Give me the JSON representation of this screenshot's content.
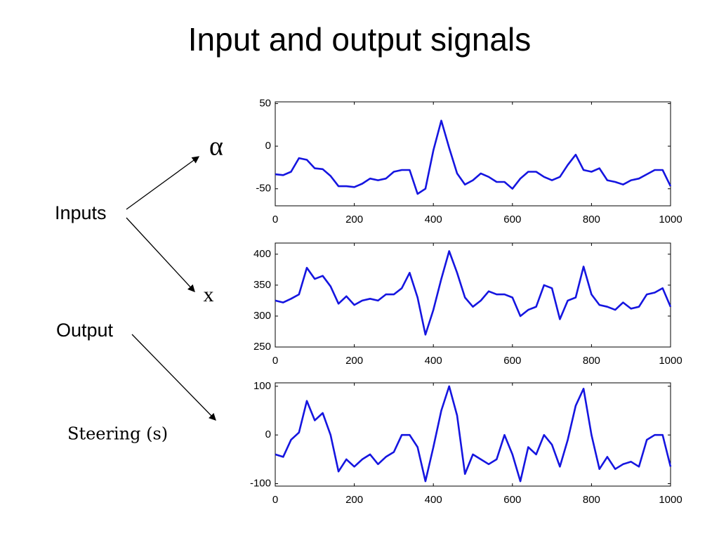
{
  "slide": {
    "title": "Input and output signals",
    "alpha_label": "α",
    "inputs_label": "Inputs",
    "x_label": "x",
    "output_label": "Output",
    "steering_label": "Steering (s)"
  },
  "chart_data": [
    {
      "type": "line",
      "x": [
        0,
        20,
        40,
        60,
        80,
        100,
        120,
        140,
        160,
        180,
        200,
        220,
        240,
        260,
        280,
        300,
        320,
        340,
        360,
        380,
        400,
        420,
        440,
        460,
        480,
        500,
        520,
        540,
        560,
        580,
        600,
        620,
        640,
        660,
        680,
        700,
        720,
        740,
        760,
        780,
        800,
        820,
        840,
        860,
        880,
        900,
        920,
        940,
        960,
        980,
        1000
      ],
      "series": [
        {
          "color": "#1515e0",
          "values": [
            -33,
            -34,
            -30,
            -14,
            -16,
            -26,
            -27,
            -35,
            -47,
            -47,
            -48,
            -44,
            -38,
            -40,
            -38,
            -30,
            -28,
            -28,
            -56,
            -50,
            -5,
            30,
            -2,
            -32,
            -45,
            -40,
            -32,
            -36,
            -42,
            -42,
            -50,
            -38,
            -30,
            -30,
            -36,
            -40,
            -36,
            -22,
            -10,
            -28,
            -30,
            -26,
            -40,
            -42,
            -45,
            -40,
            -38,
            -33,
            -28,
            -28,
            -47
          ]
        }
      ],
      "xlim": [
        0,
        1000
      ],
      "xticks": [
        0,
        200,
        400,
        600,
        800,
        1000
      ],
      "ylim": [
        -70,
        52
      ],
      "yticks": [
        -50,
        0,
        50
      ]
    },
    {
      "type": "line",
      "x": [
        0,
        20,
        40,
        60,
        80,
        100,
        120,
        140,
        160,
        180,
        200,
        220,
        240,
        260,
        280,
        300,
        320,
        340,
        360,
        380,
        400,
        420,
        440,
        460,
        480,
        500,
        520,
        540,
        560,
        580,
        600,
        620,
        640,
        660,
        680,
        700,
        720,
        740,
        760,
        780,
        800,
        820,
        840,
        860,
        880,
        900,
        920,
        940,
        960,
        980,
        1000
      ],
      "series": [
        {
          "color": "#1515e0",
          "values": [
            325,
            322,
            328,
            335,
            378,
            360,
            365,
            348,
            320,
            332,
            318,
            325,
            328,
            325,
            335,
            335,
            345,
            370,
            330,
            270,
            310,
            360,
            405,
            370,
            330,
            315,
            325,
            340,
            335,
            335,
            330,
            300,
            310,
            315,
            350,
            345,
            295,
            325,
            330,
            380,
            335,
            318,
            315,
            310,
            322,
            312,
            315,
            335,
            338,
            345,
            315
          ]
        }
      ],
      "xlim": [
        0,
        1000
      ],
      "xticks": [
        0,
        200,
        400,
        600,
        800,
        1000
      ],
      "ylim": [
        250,
        418
      ],
      "yticks": [
        250,
        300,
        350,
        400
      ]
    },
    {
      "type": "line",
      "x": [
        0,
        20,
        40,
        60,
        80,
        100,
        120,
        140,
        160,
        180,
        200,
        220,
        240,
        260,
        280,
        300,
        320,
        340,
        360,
        380,
        400,
        420,
        440,
        460,
        480,
        500,
        520,
        540,
        560,
        580,
        600,
        620,
        640,
        660,
        680,
        700,
        720,
        740,
        760,
        780,
        800,
        820,
        840,
        860,
        880,
        900,
        920,
        940,
        960,
        980,
        1000
      ],
      "series": [
        {
          "color": "#1515e0",
          "values": [
            -40,
            -45,
            -10,
            5,
            70,
            30,
            45,
            0,
            -75,
            -50,
            -65,
            -50,
            -40,
            -60,
            -45,
            -35,
            0,
            0,
            -25,
            -95,
            -25,
            50,
            100,
            40,
            -80,
            -40,
            -50,
            -60,
            -50,
            0,
            -40,
            -95,
            -25,
            -40,
            0,
            -20,
            -65,
            -10,
            60,
            95,
            0,
            -70,
            -45,
            -70,
            -60,
            -55,
            -65,
            -10,
            0,
            0,
            -65
          ]
        }
      ],
      "xlim": [
        0,
        1000
      ],
      "xticks": [
        0,
        200,
        400,
        600,
        800,
        1000
      ],
      "ylim": [
        -105,
        107
      ],
      "yticks": [
        -100,
        0,
        100
      ]
    }
  ]
}
